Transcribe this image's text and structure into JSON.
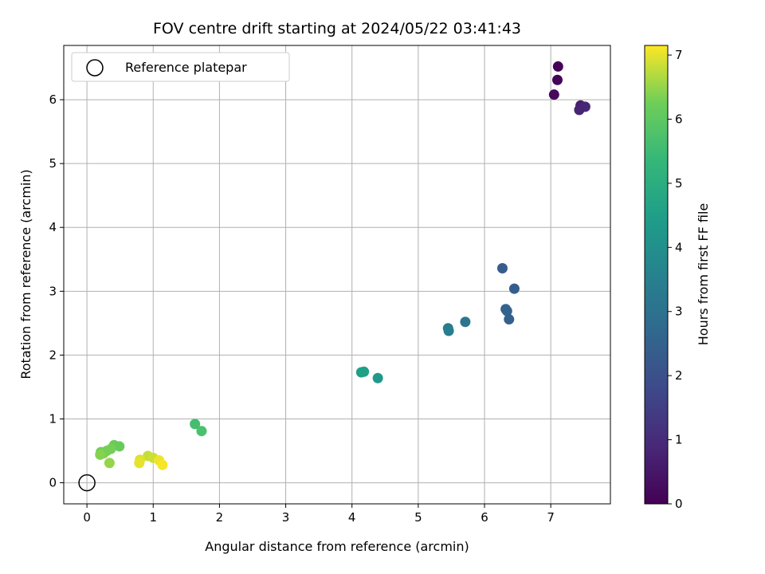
{
  "chart_data": {
    "type": "scatter",
    "title": "FOV centre drift starting at 2024/05/22 03:41:43",
    "xlabel": "Angular distance from reference (arcmin)",
    "ylabel": "Rotation from reference (arcmin)",
    "xlim": [
      -0.35,
      7.9
    ],
    "ylim": [
      -0.33,
      6.85
    ],
    "xticks": [
      0,
      1,
      2,
      3,
      4,
      5,
      6,
      7
    ],
    "yticks": [
      0,
      1,
      2,
      3,
      4,
      5,
      6
    ],
    "grid": true,
    "legend": {
      "position": "top-left",
      "entries": [
        "Reference platepar"
      ]
    },
    "reference_point": {
      "x": 0,
      "y": 0
    },
    "colorbar": {
      "label": "Hours from first FF file",
      "range": [
        0,
        7.15
      ],
      "ticks": [
        0,
        1,
        2,
        3,
        4,
        5,
        6,
        7
      ],
      "colormap": "viridis"
    },
    "points": [
      {
        "x": 7.11,
        "y": 6.52,
        "c": 0.05
      },
      {
        "x": 7.1,
        "y": 6.31,
        "c": 0.1
      },
      {
        "x": 7.05,
        "y": 6.08,
        "c": 0.15
      },
      {
        "x": 7.45,
        "y": 5.91,
        "c": 0.7
      },
      {
        "x": 7.52,
        "y": 5.89,
        "c": 0.85
      },
      {
        "x": 7.43,
        "y": 5.84,
        "c": 0.8
      },
      {
        "x": 6.27,
        "y": 3.36,
        "c": 2.35
      },
      {
        "x": 6.45,
        "y": 3.04,
        "c": 2.4
      },
      {
        "x": 6.32,
        "y": 2.72,
        "c": 2.5
      },
      {
        "x": 6.34,
        "y": 2.69,
        "c": 2.55
      },
      {
        "x": 6.37,
        "y": 2.56,
        "c": 2.45
      },
      {
        "x": 5.71,
        "y": 2.52,
        "c": 3.15
      },
      {
        "x": 5.45,
        "y": 2.42,
        "c": 3.35
      },
      {
        "x": 5.46,
        "y": 2.38,
        "c": 3.4
      },
      {
        "x": 4.14,
        "y": 1.73,
        "c": 4.5
      },
      {
        "x": 4.18,
        "y": 1.74,
        "c": 4.55
      },
      {
        "x": 4.39,
        "y": 1.64,
        "c": 4.3
      },
      {
        "x": 1.63,
        "y": 0.92,
        "c": 5.6
      },
      {
        "x": 1.73,
        "y": 0.81,
        "c": 5.7
      },
      {
        "x": 0.41,
        "y": 0.59,
        "c": 6.2
      },
      {
        "x": 0.49,
        "y": 0.57,
        "c": 6.15
      },
      {
        "x": 0.36,
        "y": 0.53,
        "c": 6.3
      },
      {
        "x": 0.21,
        "y": 0.48,
        "c": 6.25
      },
      {
        "x": 0.25,
        "y": 0.46,
        "c": 6.35
      },
      {
        "x": 0.3,
        "y": 0.5,
        "c": 6.3
      },
      {
        "x": 0.2,
        "y": 0.44,
        "c": 6.4
      },
      {
        "x": 0.34,
        "y": 0.31,
        "c": 6.5
      },
      {
        "x": 0.92,
        "y": 0.42,
        "c": 6.8
      },
      {
        "x": 1.0,
        "y": 0.39,
        "c": 6.85
      },
      {
        "x": 0.8,
        "y": 0.36,
        "c": 6.95
      },
      {
        "x": 0.79,
        "y": 0.31,
        "c": 7.0
      },
      {
        "x": 1.09,
        "y": 0.35,
        "c": 7.05
      },
      {
        "x": 1.14,
        "y": 0.28,
        "c": 7.1
      }
    ]
  }
}
